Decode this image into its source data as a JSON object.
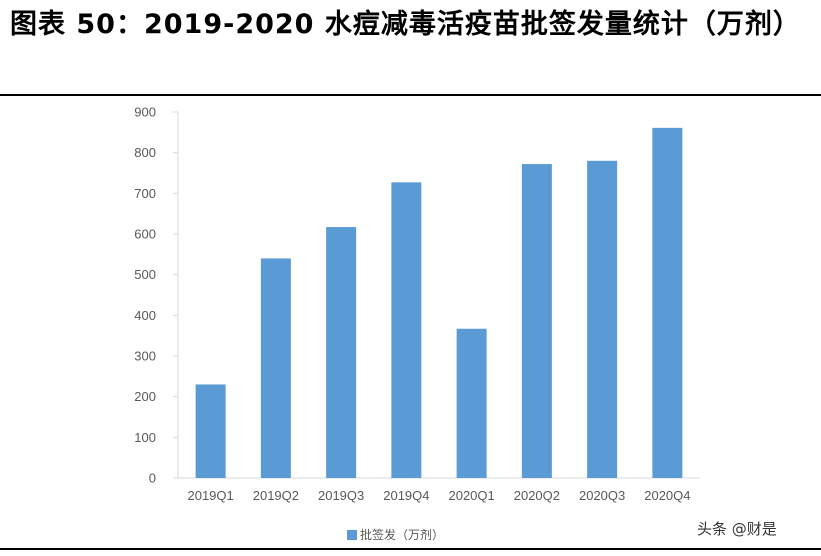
{
  "title": "图表 50：2019-2020 水痘减毒活疫苗批签发量统计（万剂）",
  "watermark": "头条 @财是",
  "colors": {
    "bar": "#5B9BD5",
    "axis": "#D9D9D9",
    "text": "#595959"
  },
  "chart_data": {
    "type": "bar",
    "categories": [
      "2019Q1",
      "2019Q2",
      "2019Q3",
      "2019Q4",
      "2020Q1",
      "2020Q2",
      "2020Q3",
      "2020Q4"
    ],
    "series": [
      {
        "name": "批签发（万剂）",
        "values": [
          230,
          540,
          617,
          727,
          367,
          772,
          780,
          861
        ]
      }
    ],
    "ylim": [
      0,
      900
    ],
    "yticks": [
      0,
      100,
      200,
      300,
      400,
      500,
      600,
      700,
      800,
      900
    ],
    "grid": false,
    "legend_position": "bottom"
  }
}
